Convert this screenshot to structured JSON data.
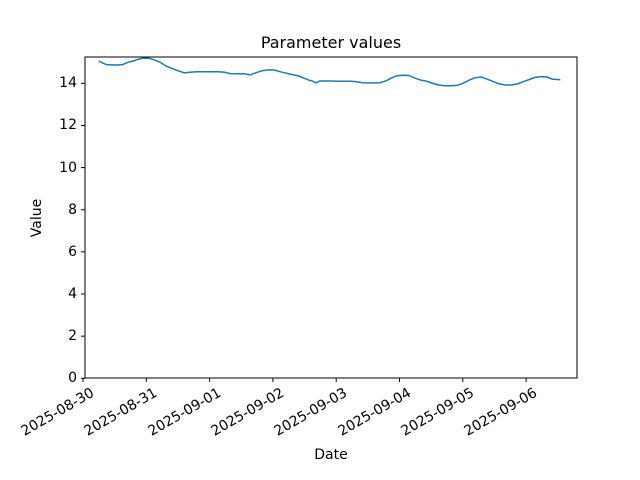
{
  "figure": {
    "title": "Parameter values",
    "xlabel": "Date",
    "ylabel": "Value"
  },
  "chart_data": {
    "type": "line",
    "title": "Parameter values",
    "xlabel": "Date",
    "ylabel": "Value",
    "line_color": "#1f77b4",
    "background_color": "#ffffff",
    "grid": false,
    "legend": "none",
    "ylim": [
      0,
      15.25
    ],
    "y_ticks": [
      0,
      2,
      4,
      6,
      8,
      10,
      12,
      14
    ],
    "x_tick_labels": [
      "2025-08-30",
      "2025-08-31",
      "2025-09-01",
      "2025-09-02",
      "2025-09-03",
      "2025-09-04",
      "2025-09-05",
      "2025-09-06"
    ],
    "x_units": "days since 2025-08-30 00:00",
    "x_days": [
      0.25,
      0.32,
      0.38,
      0.51,
      0.62,
      0.71,
      0.81,
      0.88,
      0.95,
      1.04,
      1.12,
      1.22,
      1.31,
      1.41,
      1.5,
      1.6,
      1.69,
      1.8,
      1.91,
      2.02,
      2.13,
      2.24,
      2.32,
      2.43,
      2.54,
      2.64,
      2.73,
      2.83,
      2.92,
      3.02,
      3.11,
      3.21,
      3.3,
      3.4,
      3.49,
      3.57,
      3.63,
      3.68,
      3.74,
      3.84,
      3.93,
      4.03,
      4.12,
      4.22,
      4.31,
      4.41,
      4.5,
      4.6,
      4.69,
      4.79,
      4.88,
      4.96,
      5.06,
      5.15,
      5.24,
      5.34,
      5.43,
      5.53,
      5.62,
      5.72,
      5.81,
      5.91,
      6.0,
      6.1,
      6.19,
      6.29,
      6.38,
      6.48,
      6.57,
      6.67,
      6.76,
      6.86,
      6.95,
      7.05,
      7.14,
      7.24,
      7.33,
      7.41,
      7.49,
      7.54
    ],
    "values": [
      15.05,
      14.95,
      14.88,
      14.87,
      14.88,
      15.0,
      15.08,
      15.15,
      15.19,
      15.19,
      15.12,
      15.0,
      14.82,
      14.7,
      14.6,
      14.5,
      14.53,
      14.55,
      14.55,
      14.55,
      14.55,
      14.53,
      14.46,
      14.45,
      14.45,
      14.4,
      14.5,
      14.6,
      14.63,
      14.63,
      14.55,
      14.48,
      14.42,
      14.35,
      14.25,
      14.15,
      14.1,
      14.02,
      14.11,
      14.11,
      14.11,
      14.1,
      14.1,
      14.1,
      14.08,
      14.03,
      14.02,
      14.02,
      14.03,
      14.12,
      14.26,
      14.36,
      14.38,
      14.37,
      14.25,
      14.15,
      14.1,
      13.99,
      13.92,
      13.88,
      13.88,
      13.9,
      14.0,
      14.15,
      14.26,
      14.3,
      14.2,
      14.08,
      13.98,
      13.92,
      13.92,
      13.97,
      14.07,
      14.18,
      14.28,
      14.32,
      14.3,
      14.2,
      14.18,
      14.17
    ]
  }
}
